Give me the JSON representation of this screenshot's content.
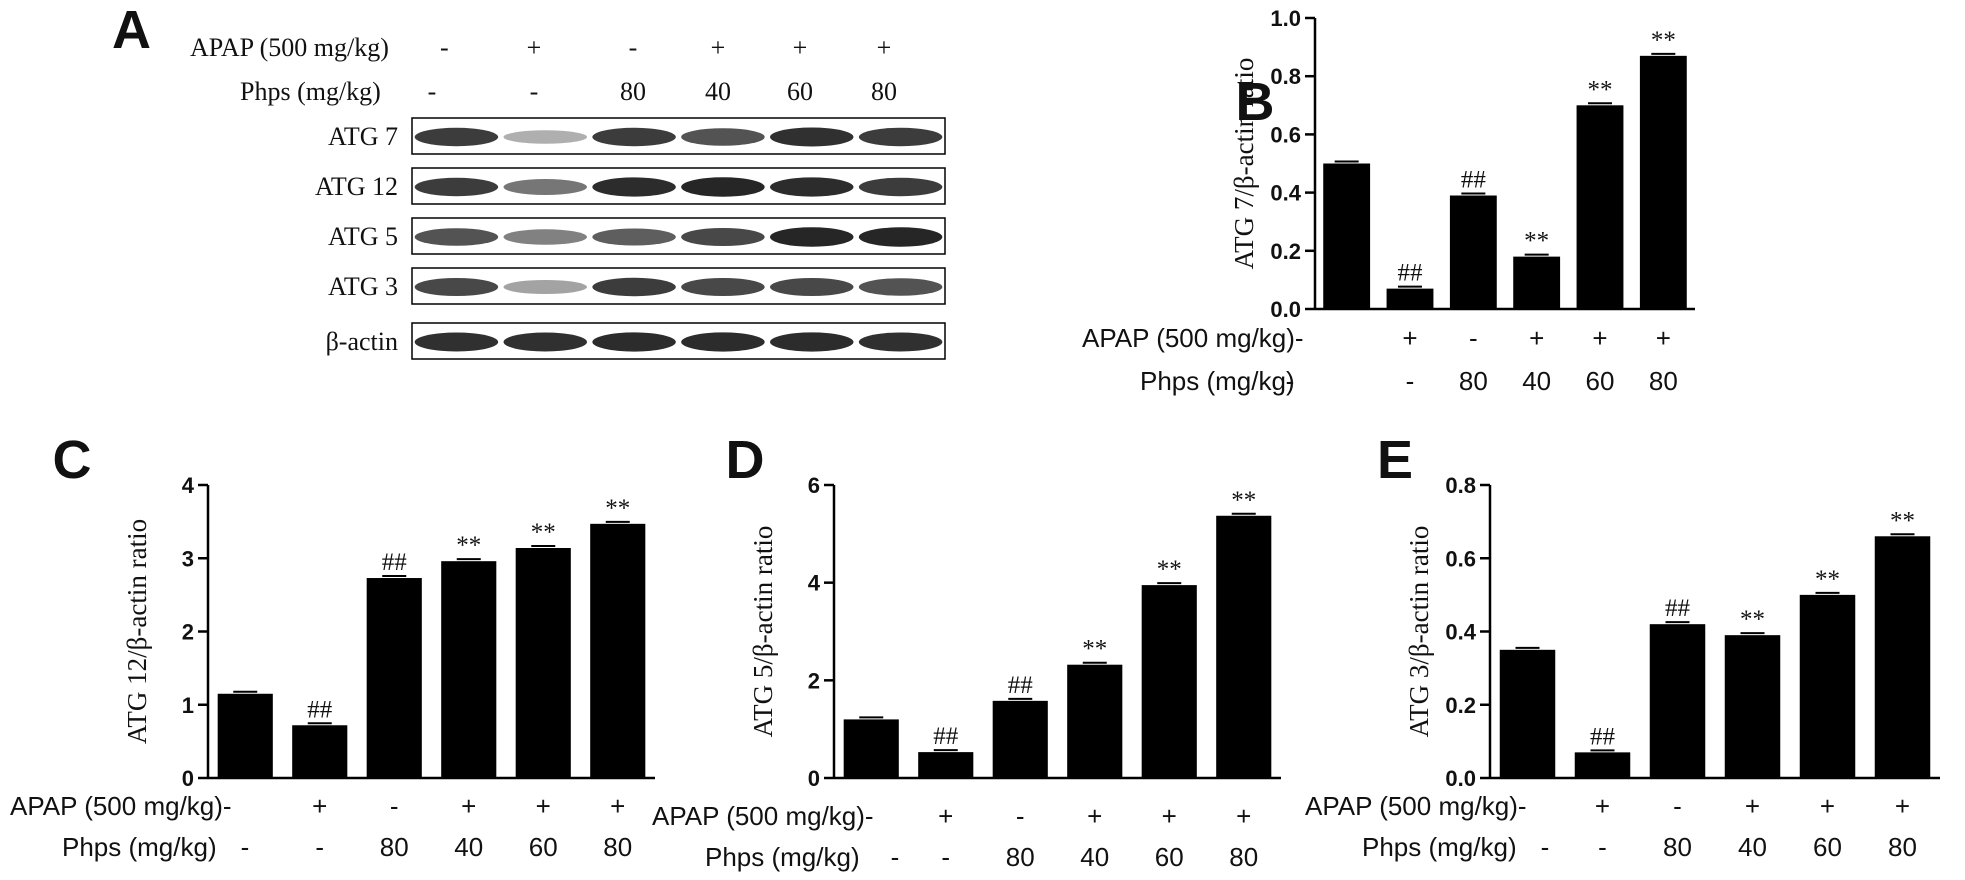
{
  "blot": {
    "letter": "A",
    "rows": [
      "ATG 7",
      "ATG 12",
      "ATG 5",
      "ATG 3",
      "β-actin"
    ],
    "intensity": [
      [
        0.85,
        0.35,
        0.85,
        0.75,
        0.9,
        0.85
      ],
      [
        0.85,
        0.6,
        0.92,
        0.95,
        0.92,
        0.85
      ],
      [
        0.75,
        0.55,
        0.7,
        0.8,
        0.95,
        0.95
      ],
      [
        0.8,
        0.4,
        0.85,
        0.8,
        0.8,
        0.75
      ],
      [
        0.9,
        0.9,
        0.92,
        0.92,
        0.92,
        0.9
      ]
    ],
    "band_color": "#1a1a1a"
  },
  "treatments": {
    "apap_label": "APAP (500 mg/kg)",
    "apap": [
      "-",
      "+",
      "-",
      "+",
      "+",
      "+"
    ],
    "phps_label": "Phps (mg/kg)",
    "phps": [
      "-",
      "-",
      "80",
      "40",
      "60",
      "80"
    ]
  },
  "chart_data": [
    {
      "panel": "B",
      "type": "bar",
      "ylabel": "ATG 7/β-actin ratio",
      "ylim": [
        0,
        1.0
      ],
      "yticks": [
        "0.0",
        "0.2",
        "0.4",
        "0.6",
        "0.8",
        "1.0"
      ],
      "values": [
        0.5,
        0.07,
        0.39,
        0.18,
        0.7,
        0.87
      ],
      "annotations": [
        "",
        "##",
        "##",
        "**",
        "**",
        "**"
      ],
      "bar_color": "#000000"
    },
    {
      "panel": "C",
      "type": "bar",
      "ylabel": "ATG 12/β-actin ratio",
      "ylim": [
        0,
        4
      ],
      "yticks": [
        "0",
        "1",
        "2",
        "3",
        "4"
      ],
      "values": [
        1.15,
        0.72,
        2.73,
        2.96,
        3.14,
        3.47
      ],
      "annotations": [
        "",
        "##",
        "##",
        "**",
        "**",
        "**"
      ],
      "bar_color": "#000000"
    },
    {
      "panel": "D",
      "type": "bar",
      "ylabel": "ATG 5/β-actin ratio",
      "ylim": [
        0,
        6
      ],
      "yticks": [
        "0",
        "2",
        "4",
        "6"
      ],
      "values": [
        1.2,
        0.53,
        1.58,
        2.32,
        3.95,
        5.37
      ],
      "annotations": [
        "",
        "##",
        "##",
        "**",
        "**",
        "**"
      ],
      "bar_color": "#000000"
    },
    {
      "panel": "E",
      "type": "bar",
      "ylabel": "ATG 3/β-actin ratio",
      "ylim": [
        0,
        0.8
      ],
      "yticks": [
        "0.0",
        "0.2",
        "0.4",
        "0.6",
        "0.8"
      ],
      "values": [
        0.35,
        0.07,
        0.42,
        0.39,
        0.5,
        0.66
      ],
      "annotations": [
        "",
        "##",
        "##",
        "**",
        "**",
        "**"
      ],
      "bar_color": "#000000"
    }
  ]
}
